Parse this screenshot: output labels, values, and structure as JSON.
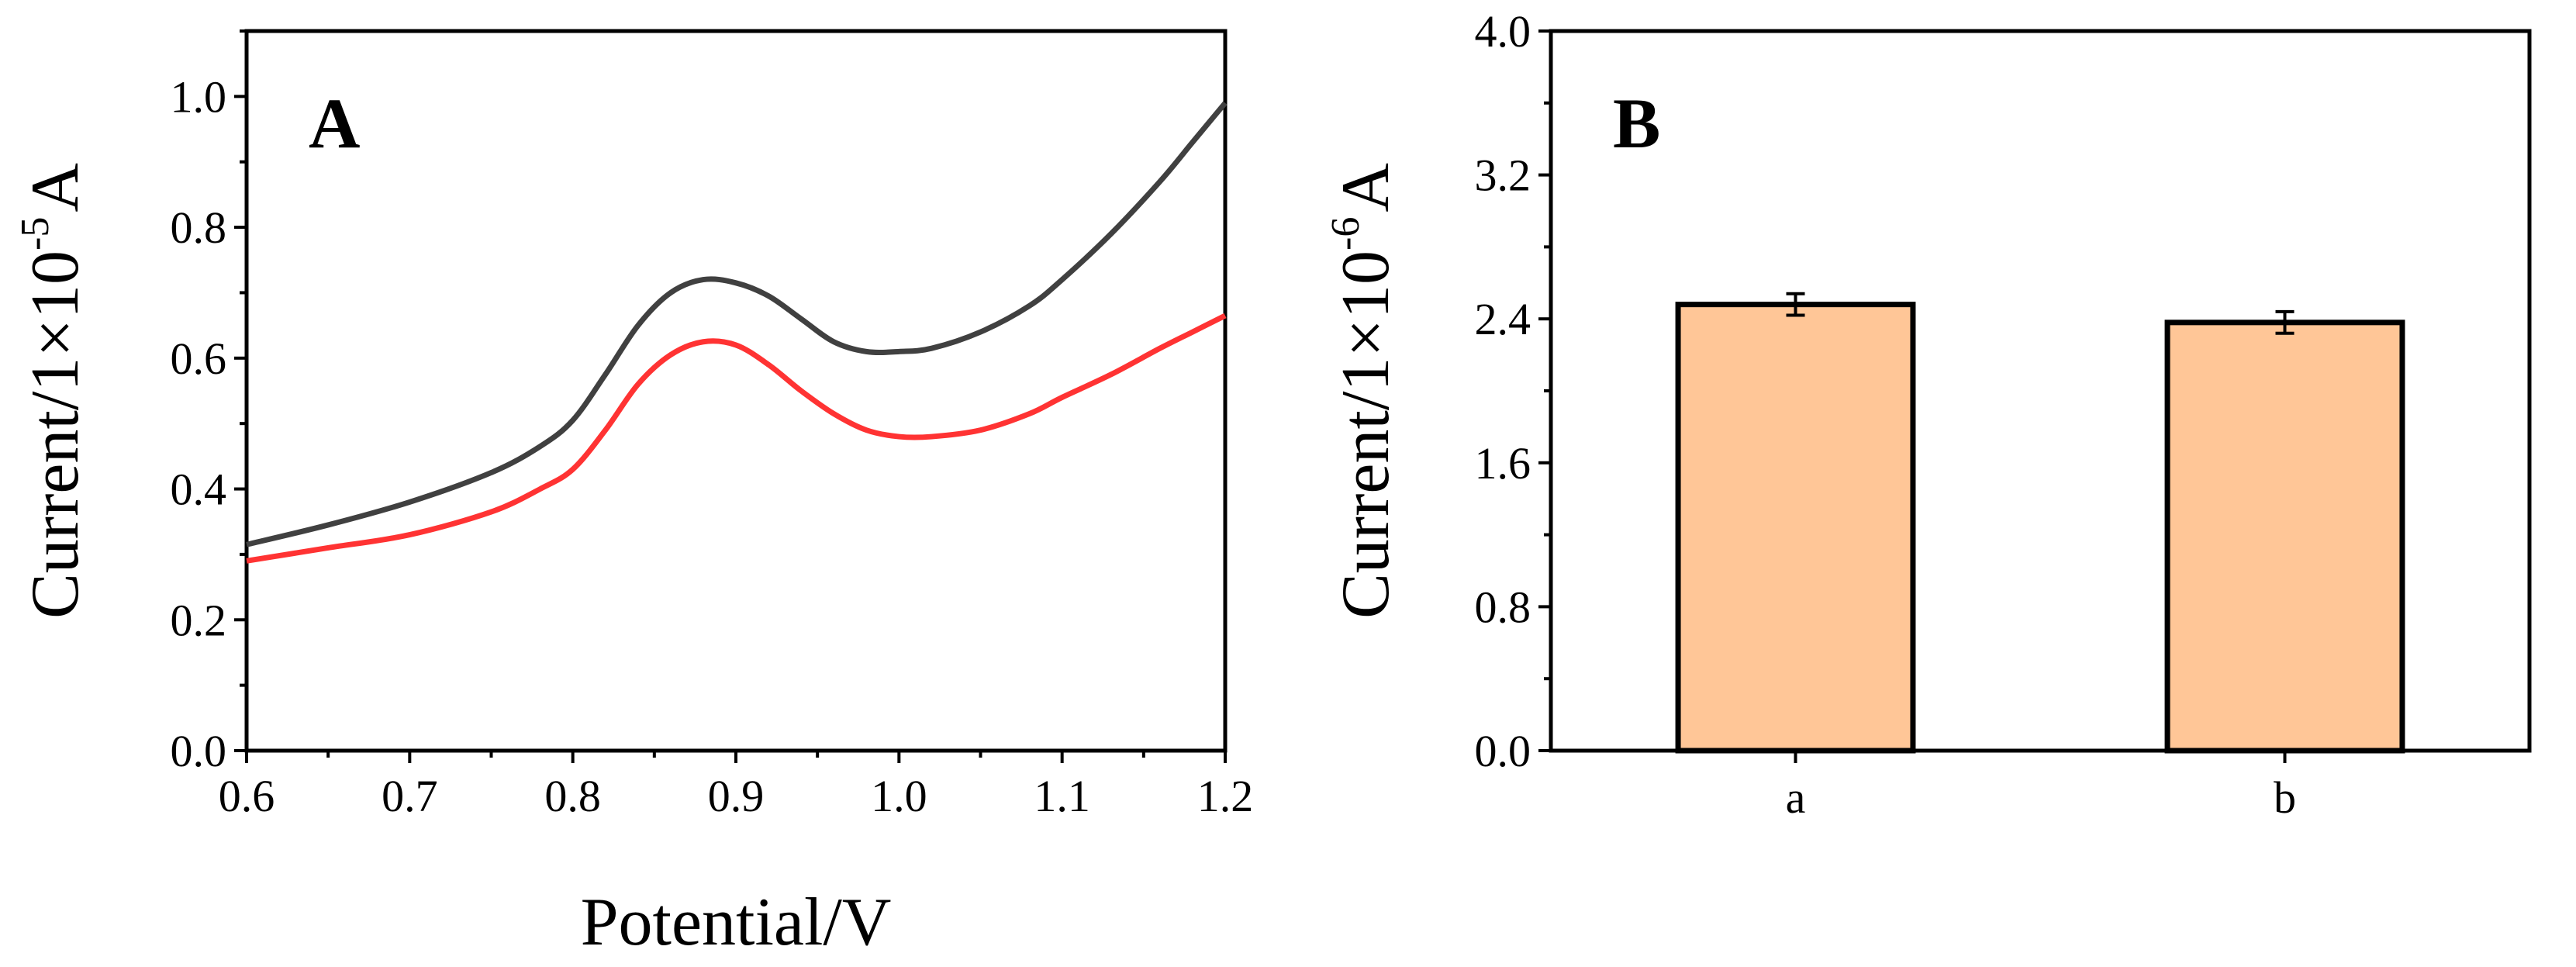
{
  "chart_data": [
    {
      "panel": "A",
      "type": "line",
      "xlabel": "Potential/V",
      "ylabel": {
        "prefix": "Current/1×10",
        "exponent": "-5",
        "suffix": "A"
      },
      "xlim": [
        0.6,
        1.2
      ],
      "ylim": [
        0.0,
        1.1
      ],
      "x_ticks": [
        "0.6",
        "0.7",
        "0.8",
        "0.9",
        "1.0",
        "1.1",
        "1.2"
      ],
      "y_ticks": [
        "0.0",
        "0.2",
        "0.4",
        "0.6",
        "0.8",
        "1.0"
      ],
      "series": [
        {
          "name": "upper curve",
          "color": "#404040",
          "x": [
            0.6,
            0.65,
            0.7,
            0.75,
            0.78,
            0.8,
            0.82,
            0.84,
            0.86,
            0.88,
            0.9,
            0.92,
            0.94,
            0.96,
            0.98,
            1.0,
            1.02,
            1.05,
            1.08,
            1.1,
            1.13,
            1.16,
            1.18,
            1.2
          ],
          "y": [
            0.315,
            0.345,
            0.38,
            0.425,
            0.465,
            0.505,
            0.575,
            0.65,
            0.7,
            0.72,
            0.715,
            0.695,
            0.66,
            0.625,
            0.61,
            0.61,
            0.615,
            0.64,
            0.68,
            0.72,
            0.79,
            0.87,
            0.93,
            0.99
          ]
        },
        {
          "name": "lower curve",
          "color": "#ff3333",
          "x": [
            0.6,
            0.65,
            0.7,
            0.75,
            0.78,
            0.8,
            0.82,
            0.84,
            0.86,
            0.88,
            0.9,
            0.92,
            0.94,
            0.96,
            0.98,
            1.0,
            1.02,
            1.05,
            1.08,
            1.1,
            1.13,
            1.16,
            1.18,
            1.2
          ],
          "y": [
            0.29,
            0.31,
            0.33,
            0.365,
            0.4,
            0.43,
            0.49,
            0.56,
            0.605,
            0.625,
            0.62,
            0.59,
            0.55,
            0.515,
            0.49,
            0.48,
            0.48,
            0.49,
            0.515,
            0.54,
            0.575,
            0.615,
            0.64,
            0.665
          ]
        }
      ]
    },
    {
      "panel": "B",
      "type": "bar",
      "xlabel": "",
      "ylabel": {
        "prefix": "Current/1×10",
        "exponent": "-6",
        "suffix": "A"
      },
      "ylim": [
        0.0,
        4.0
      ],
      "y_ticks": [
        "0.0",
        "0.8",
        "1.6",
        "2.4",
        "3.2",
        "4.0"
      ],
      "categories": [
        "a",
        "b"
      ],
      "values": [
        2.48,
        2.38
      ],
      "errors": [
        0.06,
        0.06
      ],
      "bar_color": "#ffc697"
    }
  ]
}
